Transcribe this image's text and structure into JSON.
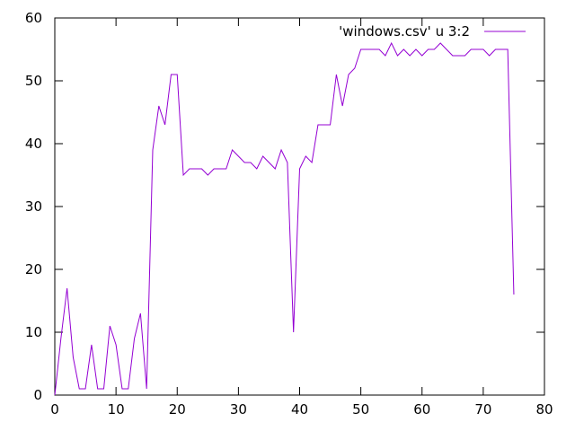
{
  "chart_data": {
    "type": "line",
    "title": "",
    "xlabel": "",
    "ylabel": "",
    "xlim": [
      0,
      80
    ],
    "ylim": [
      0,
      60
    ],
    "x_ticks": [
      0,
      10,
      20,
      30,
      40,
      50,
      60,
      70,
      80
    ],
    "y_ticks": [
      0,
      10,
      20,
      30,
      40,
      50,
      60
    ],
    "grid": false,
    "legend_position": "top-right",
    "series": [
      {
        "name": "'windows.csv' u 3:2",
        "color": "#9400d3",
        "x": [
          0,
          1,
          2,
          3,
          4,
          5,
          6,
          7,
          8,
          9,
          10,
          11,
          12,
          13,
          14,
          15,
          16,
          17,
          18,
          19,
          20,
          21,
          22,
          23,
          24,
          25,
          26,
          27,
          28,
          29,
          30,
          31,
          32,
          33,
          34,
          35,
          36,
          37,
          38,
          39,
          40,
          41,
          42,
          43,
          44,
          45,
          46,
          47,
          48,
          49,
          50,
          51,
          52,
          53,
          54,
          55,
          56,
          57,
          58,
          59,
          60,
          61,
          62,
          63,
          64,
          65,
          66,
          67,
          68,
          69,
          70,
          71,
          72,
          73,
          74,
          75
        ],
        "y": [
          0,
          9,
          17,
          6,
          1,
          1,
          8,
          1,
          1,
          11,
          8,
          1,
          1,
          9,
          13,
          1,
          39,
          46,
          43,
          51,
          51,
          35,
          36,
          36,
          36,
          35,
          36,
          36,
          36,
          39,
          38,
          37,
          37,
          36,
          38,
          37,
          36,
          39,
          37,
          10,
          36,
          38,
          37,
          43,
          43,
          43,
          51,
          46,
          51,
          52,
          55,
          55,
          55,
          55,
          54,
          56,
          54,
          55,
          54,
          55,
          54,
          55,
          55,
          56,
          55,
          54,
          54,
          54,
          55,
          55,
          55,
          54,
          55,
          55,
          55,
          16
        ]
      }
    ]
  }
}
